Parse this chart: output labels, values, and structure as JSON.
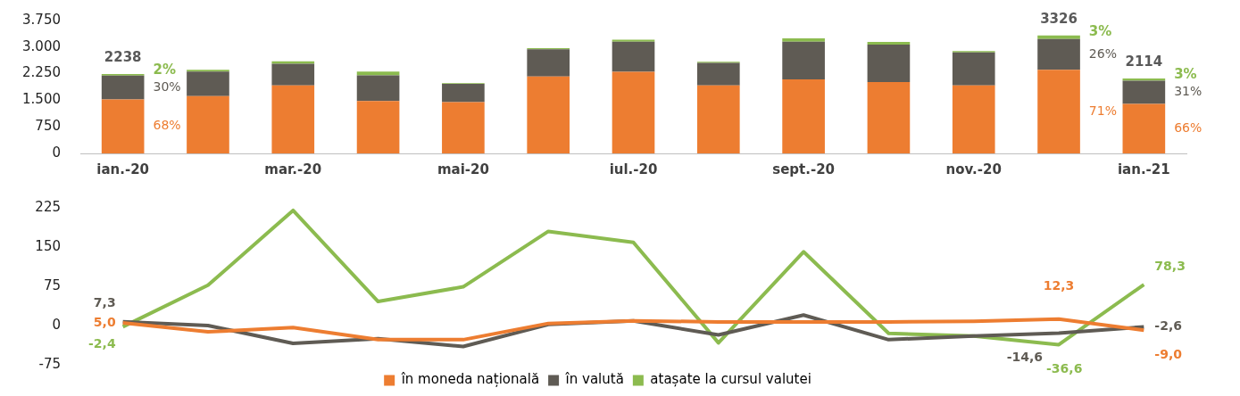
{
  "chart_data": [
    {
      "type": "bar",
      "stacked": true,
      "categories": [
        "ian.-20",
        null,
        "mar.-20",
        null,
        "mai-20",
        null,
        "iul.-20",
        null,
        "sept.-20",
        null,
        "nov.-20",
        null,
        "ian.-21"
      ],
      "series": [
        {
          "color": "#ed7d31",
          "values": [
            1522,
            1620,
            1920,
            1480,
            1445,
            2170,
            2300,
            1920,
            2090,
            2015,
            1920,
            2361,
            1395
          ]
        },
        {
          "color": "#5f5b54",
          "values": [
            671,
            690,
            610,
            720,
            515,
            770,
            850,
            635,
            1060,
            1055,
            930,
            865,
            656
          ]
        },
        {
          "color": "#8cbb4f",
          "values": [
            45,
            50,
            70,
            110,
            25,
            30,
            60,
            30,
            95,
            75,
            35,
            100,
            63
          ]
        }
      ],
      "annotations": [
        "68%",
        "30%",
        "2%",
        "71%",
        "26%",
        "3%",
        "66%",
        "31%",
        "3%"
      ],
      "totals": [
        "2238",
        null,
        null,
        null,
        null,
        null,
        null,
        null,
        null,
        null,
        null,
        "3326",
        "2114"
      ],
      "ylim": [
        0,
        3750
      ],
      "yticks": [
        0,
        750,
        {
          "value": 1500,
          "label": "1.500"
        },
        {
          "value": 2250,
          "label": "2.250"
        },
        {
          "value": 3000,
          "label": "3.000"
        },
        {
          "value": 3750,
          "label": "3.750"
        }
      ],
      "grid": false,
      "legend": false
    },
    {
      "type": "line",
      "categories": [
        null,
        null,
        null,
        null,
        null,
        null,
        null,
        null,
        null,
        null,
        null,
        null,
        null
      ],
      "series": [
        {
          "name": "în moneda națională",
          "color": "#ed7d31",
          "values": [
            5.0,
            -12,
            -4,
            -27,
            -27,
            4,
            9,
            7,
            7,
            7,
            8,
            12.3,
            -9.0
          ],
          "value_labels": [
            "5,0",
            null,
            null,
            null,
            null,
            null,
            null,
            null,
            null,
            null,
            null,
            "12,3",
            "-9,0"
          ]
        },
        {
          "name": "în valută",
          "color": "#5f5b54",
          "values": [
            7.3,
            0,
            -34,
            -25,
            -40,
            2,
            9,
            -18,
            20,
            -27,
            -20,
            -14.6,
            -2.6
          ],
          "value_labels": [
            "7,3",
            null,
            null,
            null,
            null,
            null,
            null,
            null,
            null,
            null,
            null,
            "-14,6",
            "-2,6"
          ]
        },
        {
          "name": "atașate la cursul valutei",
          "color": "#8cbb4f",
          "values": [
            -2.4,
            77,
            220,
            46,
            74,
            180,
            159,
            -33,
            141,
            -15,
            -20,
            -36.6,
            78.3
          ],
          "value_labels": [
            "-2,4",
            null,
            null,
            null,
            null,
            null,
            null,
            null,
            null,
            null,
            null,
            "-36,6",
            "78,3"
          ]
        }
      ],
      "ylim": [
        -75,
        225
      ],
      "yticks": [
        -75,
        0,
        75,
        150,
        225
      ],
      "tick_labels": "y",
      "grid": false,
      "legend": "bottom",
      "marker": "none",
      "line_style": "solid"
    }
  ]
}
